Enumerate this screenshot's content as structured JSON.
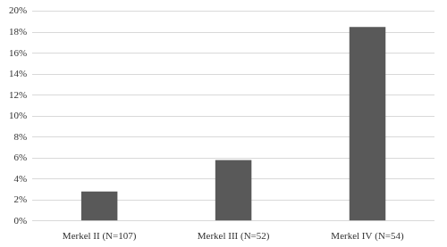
{
  "chart_data": {
    "type": "bar",
    "categories": [
      "Merkel II (N=107)",
      "Merkel III (N=52)",
      "Merkel IV (N=54)"
    ],
    "values": [
      2.8,
      5.8,
      18.5
    ],
    "color": "#595959",
    "ylim": [
      0,
      20
    ],
    "yticks": [
      {
        "value": 0,
        "label": "0%"
      },
      {
        "value": 2,
        "label": "2%"
      },
      {
        "value": 4,
        "label": "4%"
      },
      {
        "value": 6,
        "label": "6%"
      },
      {
        "value": 8,
        "label": "8%"
      },
      {
        "value": 10,
        "label": "10%"
      },
      {
        "value": 12,
        "label": "12%"
      },
      {
        "value": 14,
        "label": "14%"
      },
      {
        "value": 16,
        "label": "16%"
      },
      {
        "value": 18,
        "label": "18%"
      },
      {
        "value": 20,
        "label": "20%"
      }
    ],
    "grid": true
  }
}
